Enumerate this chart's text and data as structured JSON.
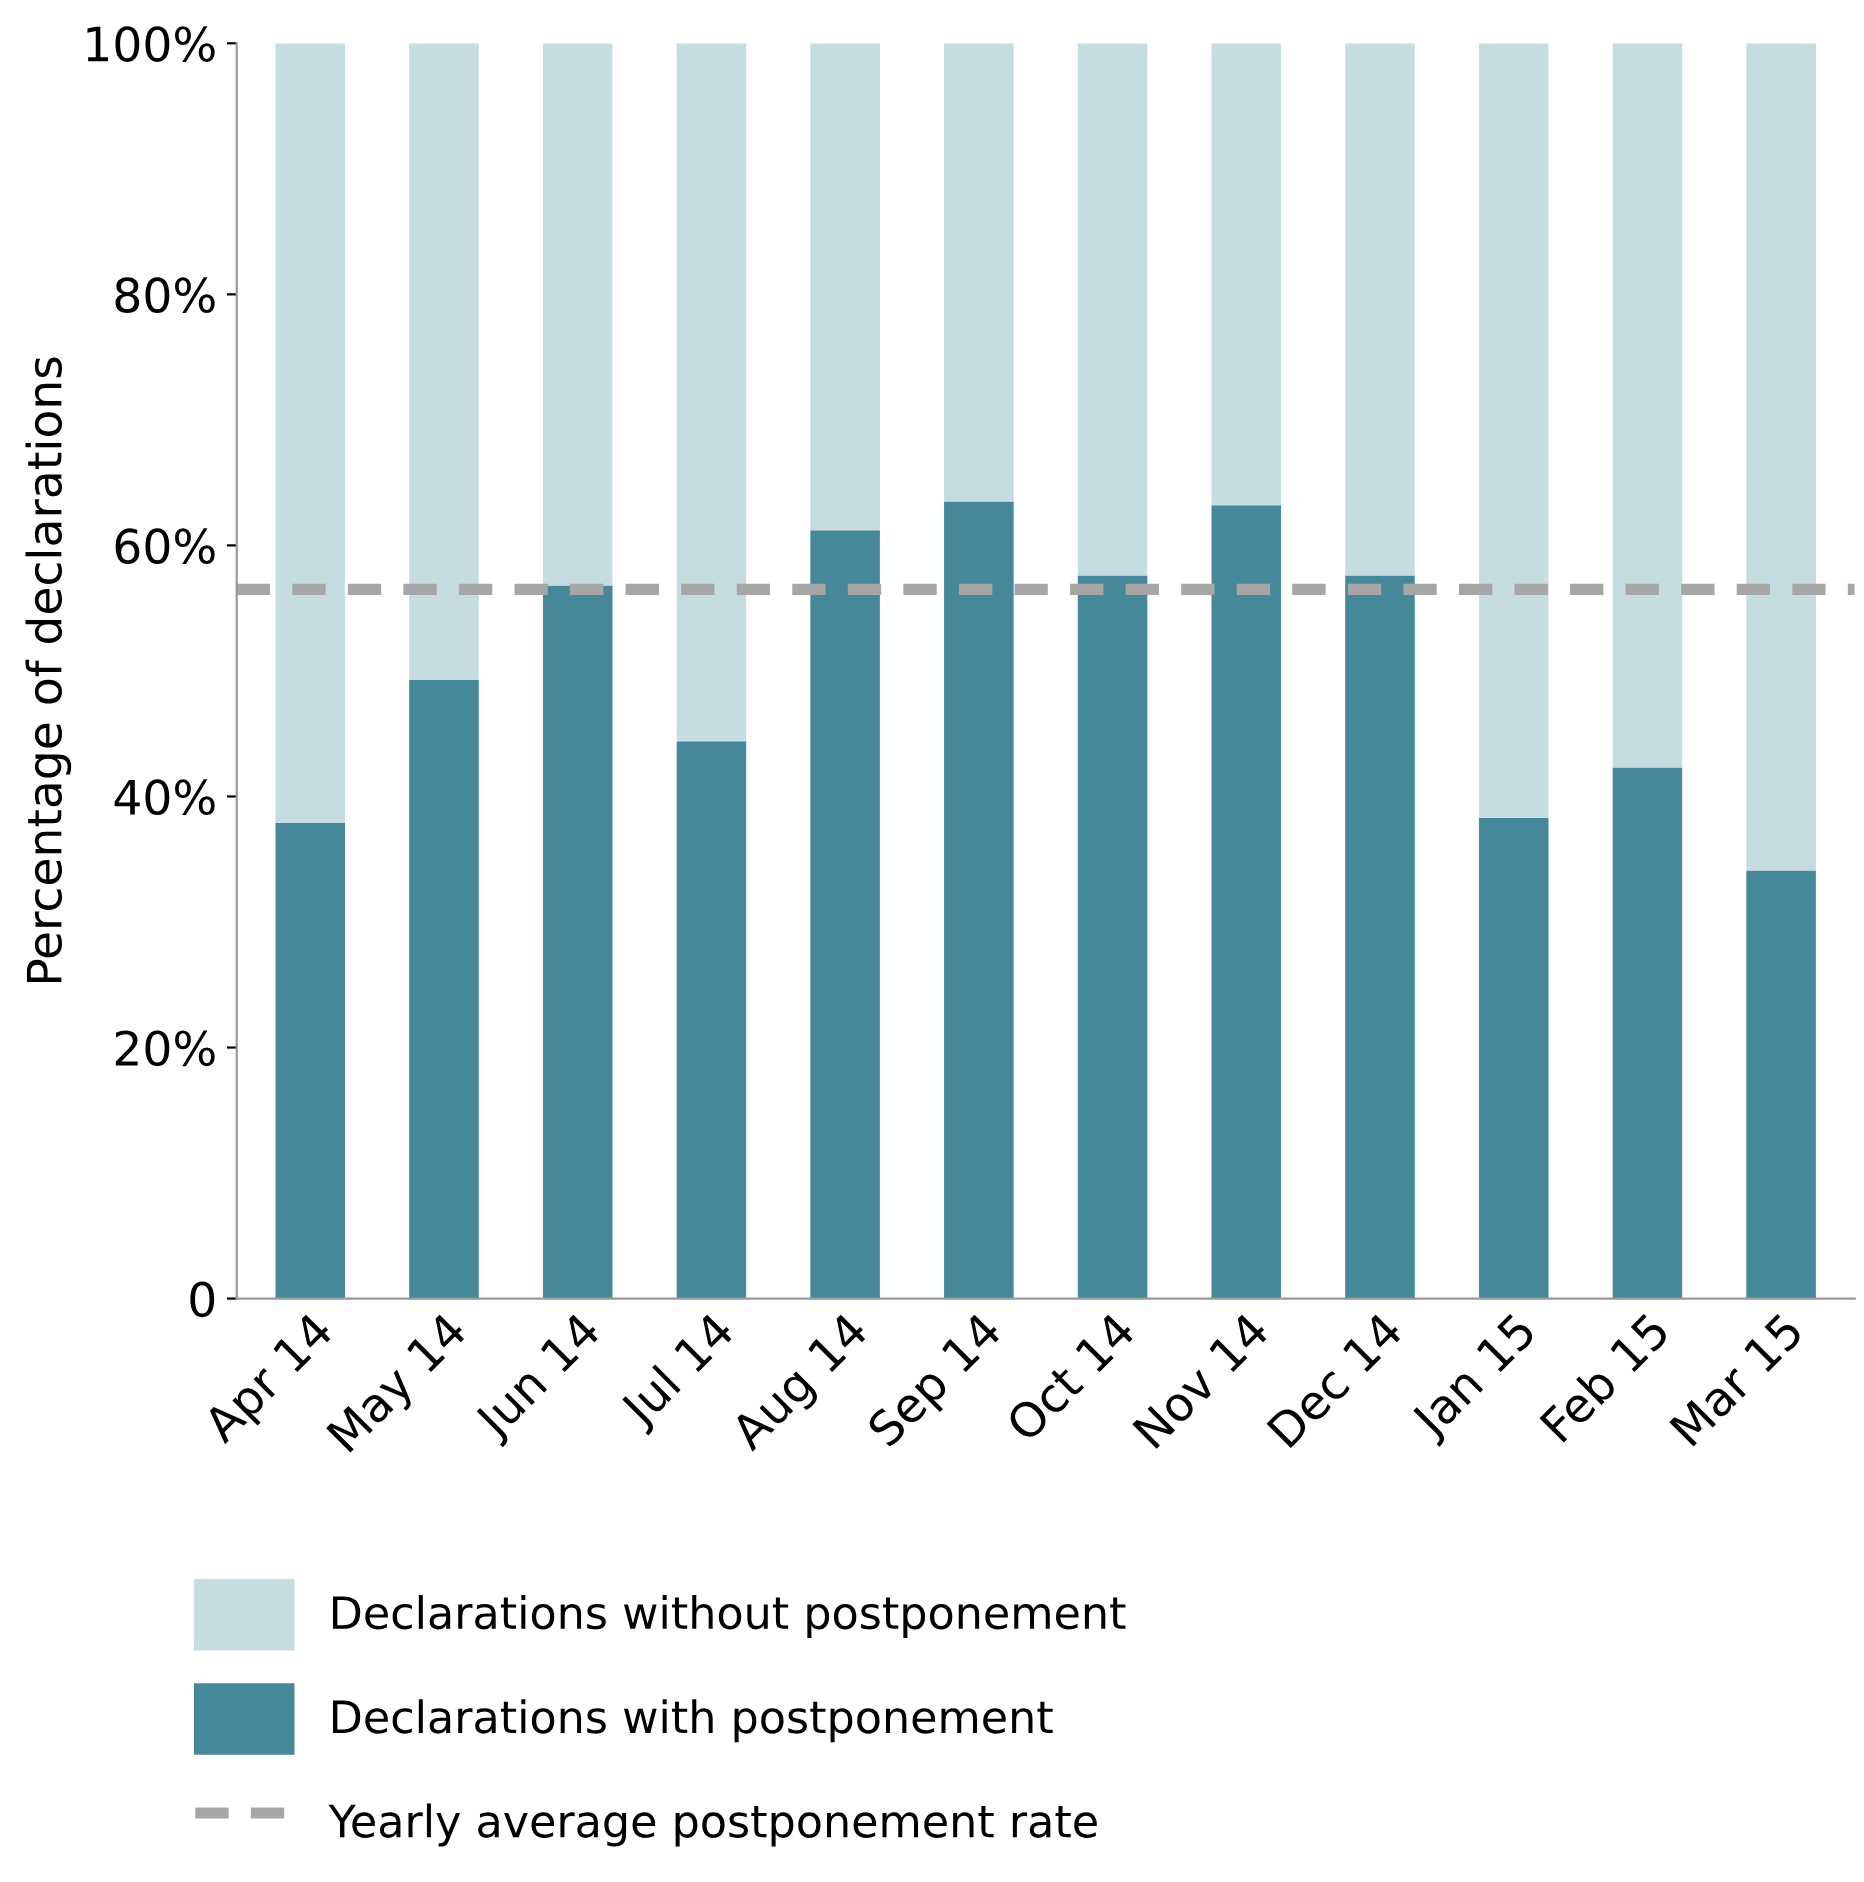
{
  "chart_data": {
    "type": "bar",
    "stacked": true,
    "ylabel": "Percentage of declarations",
    "categories": [
      "Apr 14",
      "May 14",
      "Jun 14",
      "Jul 14",
      "Aug 14",
      "Sep 14",
      "Oct 14",
      "Nov 14",
      "Dec 14",
      "Jan 15",
      "Feb 15",
      "Mar 15"
    ],
    "series": [
      {
        "name": "Declarations with postponement",
        "color": "#458899",
        "values": [
          37.9,
          49.3,
          56.8,
          44.4,
          61.2,
          63.5,
          57.6,
          63.2,
          57.6,
          38.3,
          42.3,
          34.1
        ]
      },
      {
        "name": "Declarations without postponement",
        "color": "#c5dce0",
        "values": [
          62.1,
          50.7,
          43.2,
          55.6,
          38.8,
          36.5,
          42.4,
          36.8,
          42.4,
          61.7,
          57.7,
          65.9
        ]
      }
    ],
    "ref_lines": [
      {
        "axis": "y",
        "value": 56.5,
        "label": "Yearly average postponement rate",
        "color": "#a6a6a6",
        "line_style": "dashed"
      }
    ],
    "ylim": [
      0,
      100
    ],
    "yticks": [
      0,
      {
        "value": 20,
        "label": "20%"
      },
      {
        "value": 40,
        "label": "40%"
      },
      {
        "value": 60,
        "label": "60%"
      },
      {
        "value": 80,
        "label": "80%"
      },
      {
        "value": 100,
        "label": "100%"
      }
    ],
    "grid": false,
    "legend": "bottom"
  }
}
